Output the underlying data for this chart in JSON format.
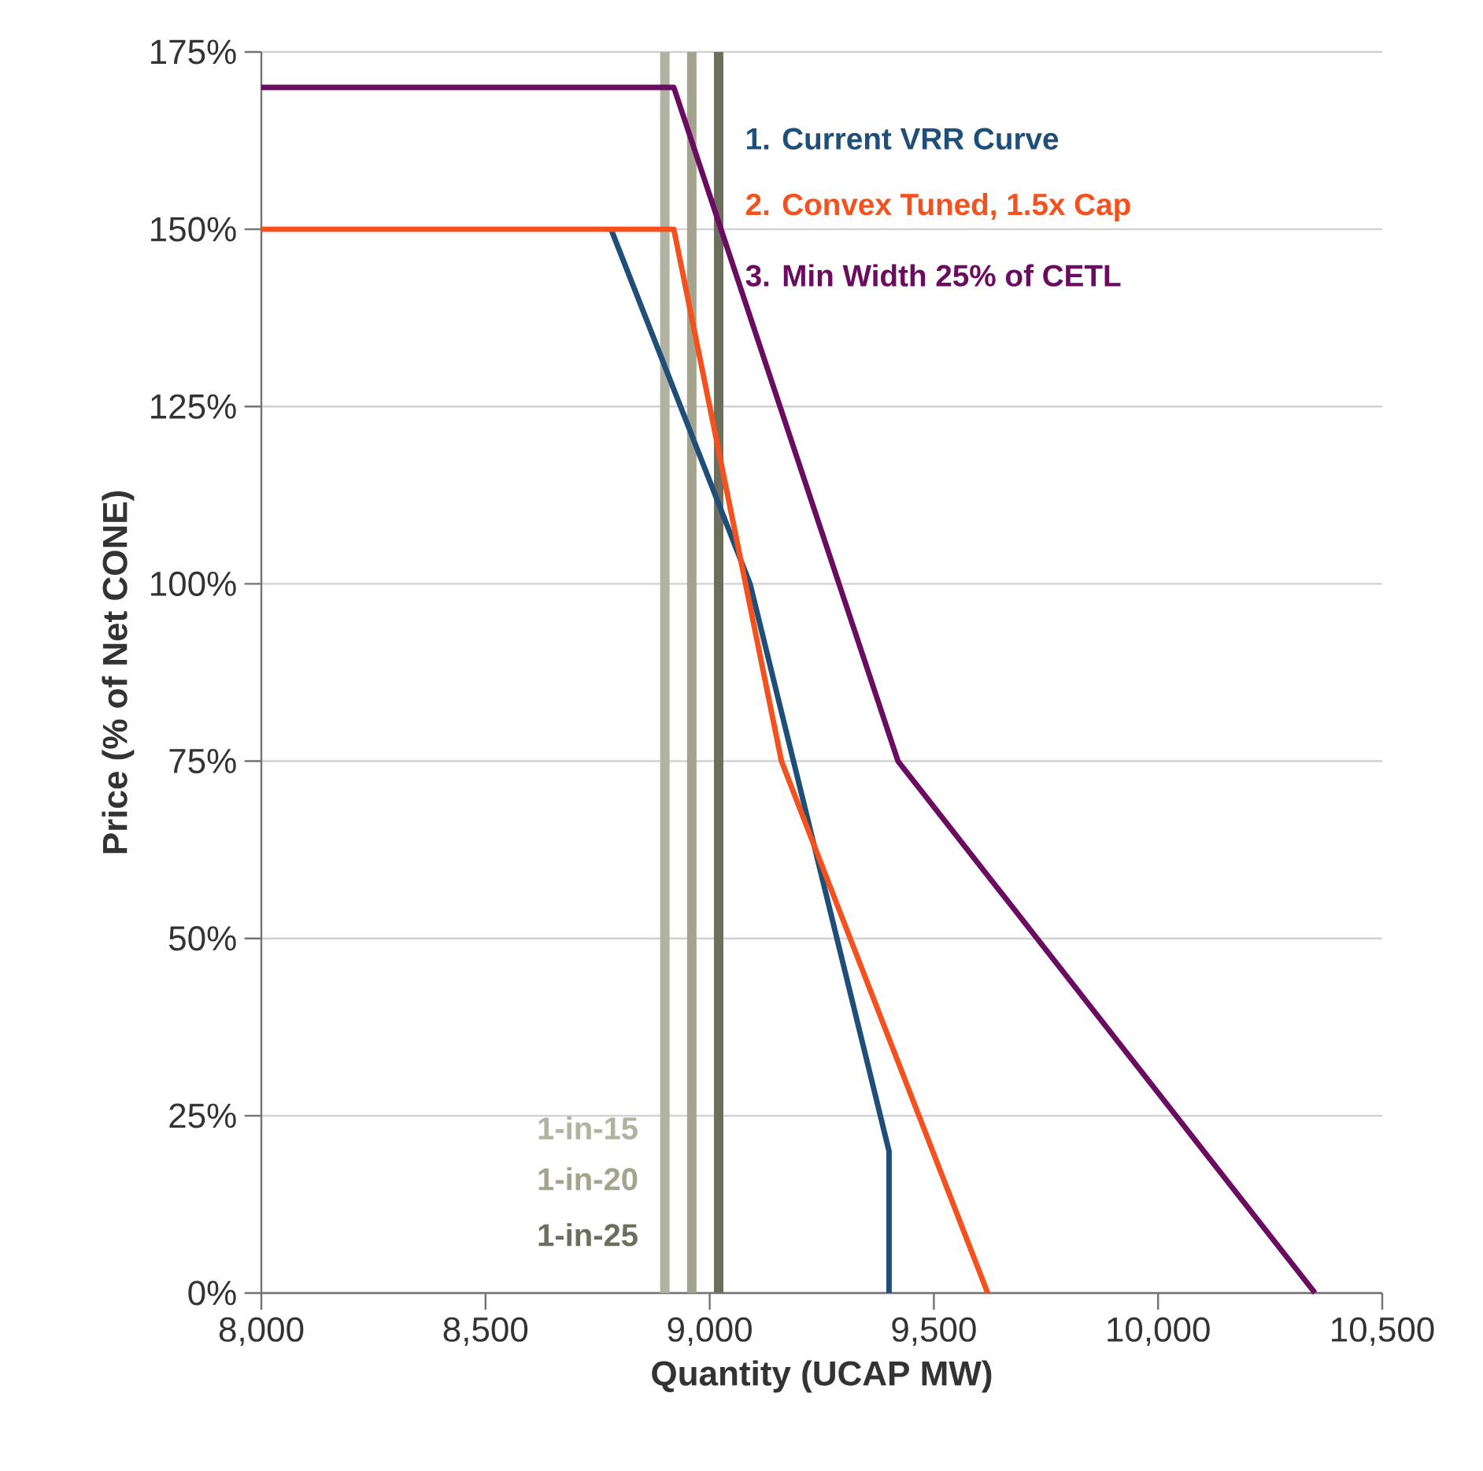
{
  "chart_data": {
    "type": "line",
    "xlabel": "Quantity (UCAP MW)",
    "ylabel": "Price (% of Net CONE)",
    "xlim": [
      8000,
      10500
    ],
    "ylim": [
      0,
      175
    ],
    "xticks": [
      {
        "value": 8000,
        "label": "8,000"
      },
      {
        "value": 8500,
        "label": "8,500"
      },
      {
        "value": 9000,
        "label": "9,000"
      },
      {
        "value": 9500,
        "label": "9,500"
      },
      {
        "value": 10000,
        "label": "10,000"
      },
      {
        "value": 10500,
        "label": "10,500"
      }
    ],
    "yticks": [
      {
        "value": 0,
        "label": "0%"
      },
      {
        "value": 25,
        "label": "25%"
      },
      {
        "value": 50,
        "label": "50%"
      },
      {
        "value": 75,
        "label": "75%"
      },
      {
        "value": 100,
        "label": "100%"
      },
      {
        "value": 125,
        "label": "125%"
      },
      {
        "value": 150,
        "label": "150%"
      },
      {
        "value": 175,
        "label": "175%"
      }
    ],
    "grid": "y",
    "marker": "none",
    "line_style": "solid",
    "series": [
      {
        "name": "1. Current VRR Curve",
        "color": "#1f4e79",
        "x": [
          8780,
          9090,
          9400,
          9400
        ],
        "values": [
          150,
          100,
          20,
          0
        ]
      },
      {
        "name": "2. Convex Tuned, 1.5x Cap",
        "color": "#f4511e",
        "x": [
          8000,
          8920,
          9160,
          9620
        ],
        "values": [
          150,
          150,
          75,
          0
        ]
      },
      {
        "name": "3. Min Width 25% of CETL",
        "color": "#6a0d61",
        "x": [
          8000,
          8920,
          9420,
          10350
        ],
        "values": [
          170,
          170,
          75,
          0
        ]
      }
    ],
    "ref_lines": [
      {
        "axis": "x",
        "value": 8900,
        "label": "1-in-15",
        "color": "#b2b2a0"
      },
      {
        "axis": "x",
        "value": 8960,
        "label": "1-in-20",
        "color": "#a3a38e"
      },
      {
        "axis": "x",
        "value": 9020,
        "label": "1-in-25",
        "color": "#6e6e5c"
      }
    ]
  }
}
